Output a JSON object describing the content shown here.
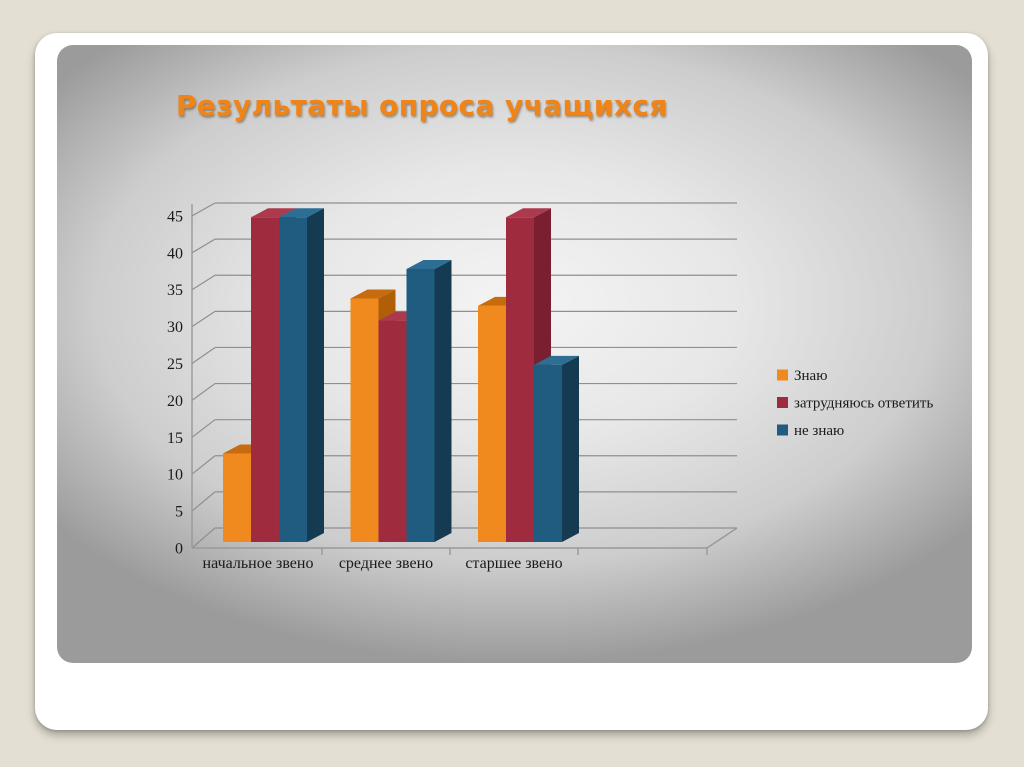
{
  "slide": {
    "title": "Результаты опроса учащихся",
    "title_color": "#EF8418"
  },
  "chart_data": {
    "type": "bar",
    "variant": "3d-clustered-column",
    "title": "Результаты опроса учащихся",
    "categories": [
      "начальное звено",
      "среднее звено",
      "старшее звено"
    ],
    "series": [
      {
        "name": "Знаю",
        "color": "#F08A1E",
        "color_top": "#C66C0E",
        "color_side": "#B15E08",
        "values": [
          12,
          33,
          32
        ]
      },
      {
        "name": "затрудняюсь ответить",
        "color": "#9E2B3E",
        "color_top": "#AC3A4E",
        "color_side": "#7A1F2F",
        "values": [
          44,
          30,
          44
        ]
      },
      {
        "name": "не знаю",
        "color": "#1F5C80",
        "color_top": "#2D6E94",
        "color_side": "#153B52",
        "values": [
          44,
          37,
          24
        ]
      }
    ],
    "yticks": [
      0,
      5,
      10,
      15,
      20,
      25,
      30,
      35,
      40,
      45
    ],
    "ylim": [
      0,
      45
    ],
    "grid": true,
    "legend_position": "right",
    "xlabel": "",
    "ylabel": ""
  },
  "colors": {
    "page_background": "#E4DFD3",
    "card_background": "#FFFFFF",
    "gridline": "#8F8F8F",
    "axis": "#999999",
    "tick_text": "#1A1A1A"
  }
}
